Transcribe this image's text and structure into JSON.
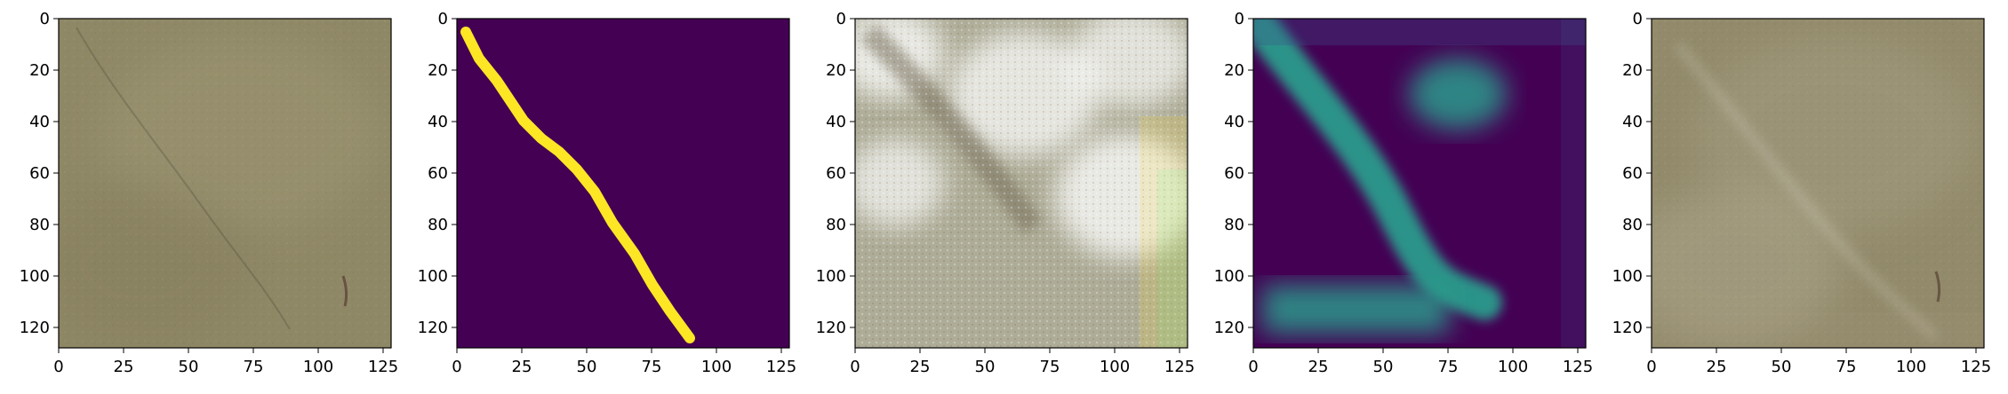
{
  "panels": [
    {
      "id": "input-image",
      "kind": "texture",
      "colors": [
        "#8f8866",
        "#9c9472",
        "#857d5d"
      ],
      "x_ticks": [
        "0",
        "25",
        "50",
        "75",
        "100",
        "125"
      ],
      "y_ticks": [
        "0",
        "20",
        "40",
        "60",
        "80",
        "100",
        "120"
      ]
    },
    {
      "id": "ground-truth-mask",
      "kind": "mask",
      "colors": [
        "#440154",
        "#fde725"
      ],
      "x_ticks": [
        "0",
        "25",
        "50",
        "75",
        "100",
        "125"
      ],
      "y_ticks": [
        "0",
        "20",
        "40",
        "60",
        "80",
        "100",
        "120"
      ]
    },
    {
      "id": "predicted-image",
      "kind": "noisy",
      "colors": [
        "#c9c8b5",
        "#ffffff",
        "#8f8a72"
      ],
      "x_ticks": [
        "0",
        "25",
        "50",
        "75",
        "100",
        "125"
      ],
      "y_ticks": [
        "0",
        "20",
        "40",
        "60",
        "80",
        "100",
        "120"
      ]
    },
    {
      "id": "predicted-mask",
      "kind": "heat",
      "colors": [
        "#440154",
        "#2a9b8c",
        "#3b528b"
      ],
      "x_ticks": [
        "0",
        "25",
        "50",
        "75",
        "100",
        "125"
      ],
      "y_ticks": [
        "0",
        "20",
        "40",
        "60",
        "80",
        "100",
        "120"
      ]
    },
    {
      "id": "reconstructed-image",
      "kind": "texture2",
      "colors": [
        "#928a6a",
        "#a39c80",
        "#b1ab92"
      ],
      "x_ticks": [
        "0",
        "25",
        "50",
        "75",
        "100",
        "125"
      ],
      "y_ticks": [
        "0",
        "20",
        "40",
        "60",
        "80",
        "100",
        "120"
      ]
    }
  ]
}
